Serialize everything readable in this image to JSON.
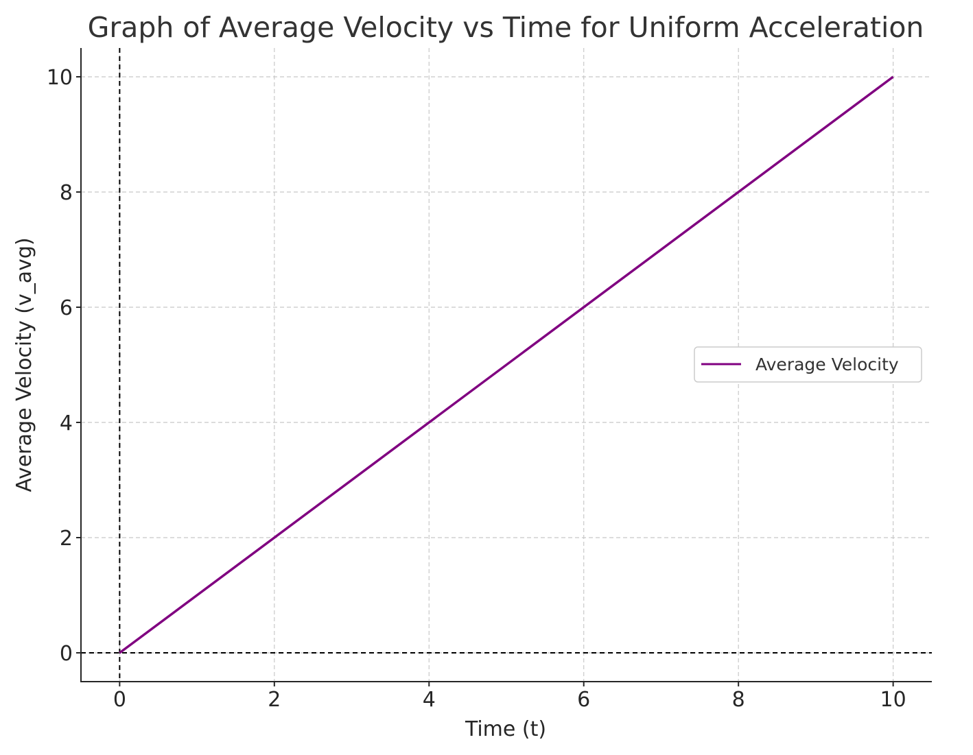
{
  "chart_data": {
    "type": "line",
    "title": "Graph of Average Velocity vs Time for Uniform Acceleration",
    "xlabel": "Time (t)",
    "ylabel": "Average Velocity (v_avg)",
    "xlim": [
      -0.5,
      10.5
    ],
    "ylim": [
      -0.5,
      10.5
    ],
    "xticks": [
      0,
      2,
      4,
      6,
      8,
      10
    ],
    "yticks": [
      0,
      2,
      4,
      6,
      8,
      10
    ],
    "xtick_labels": [
      "0",
      "2",
      "4",
      "6",
      "8",
      "10"
    ],
    "ytick_labels": [
      "0",
      "2",
      "4",
      "6",
      "8",
      "10"
    ],
    "grid": true,
    "reference_lines": {
      "x": 0,
      "y": 0,
      "style": "dashed",
      "color": "#000000"
    },
    "legend": {
      "position": "center-right"
    },
    "series": [
      {
        "name": "Average Velocity",
        "color": "#800080",
        "x": [
          0,
          10
        ],
        "y": [
          0,
          10
        ]
      }
    ]
  }
}
